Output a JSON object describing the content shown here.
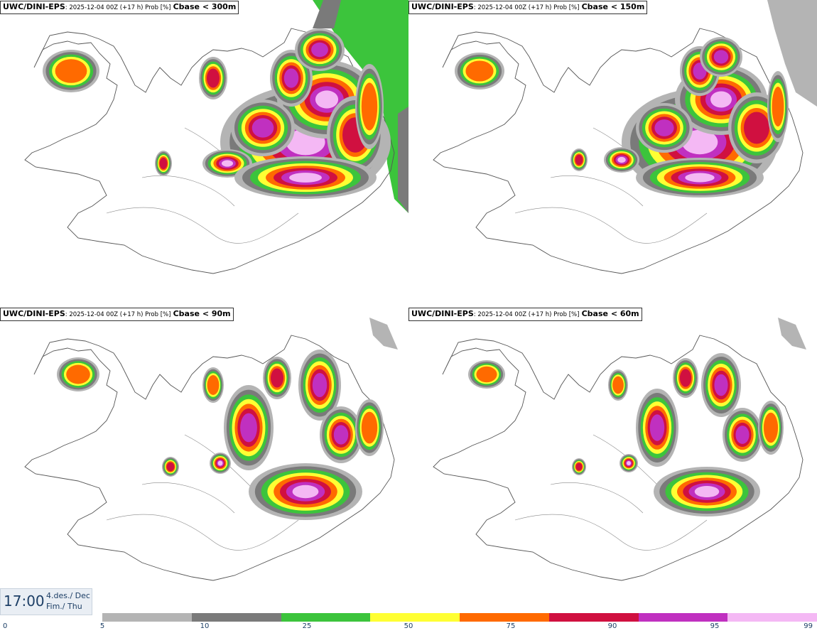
{
  "panels": [
    {
      "model": "UWC/DINI-EPS",
      "meta": ": 2025-12-04 00Z (+17 h) Prob [%]",
      "threshold": "Cbase < 300m"
    },
    {
      "model": "UWC/DINI-EPS",
      "meta": ": 2025-12-04 00Z (+17 h) Prob [%]",
      "threshold": "Cbase < 150m"
    },
    {
      "model": "UWC/DINI-EPS",
      "meta": ": 2025-12-04 00Z (+17 h) Prob [%]",
      "threshold": "Cbase < 90m"
    },
    {
      "model": "UWC/DINI-EPS",
      "meta": ": 2025-12-04 00Z (+17 h) Prob [%]",
      "threshold": "Cbase < 60m"
    }
  ],
  "valid_time": {
    "time": "17:00",
    "date_line1": "4.des./ Dec",
    "date_line2": "Fim./ Thu"
  },
  "legend": {
    "ticks": [
      "0",
      "5",
      "10",
      "25",
      "50",
      "75",
      "90",
      "95",
      "99"
    ],
    "colors": [
      "#b4b4b4",
      "#7a7a7a",
      "#3cc43c",
      "#ffff33",
      "#ff6a00",
      "#d01040",
      "#c030c0",
      "#f4b8f4"
    ]
  }
}
